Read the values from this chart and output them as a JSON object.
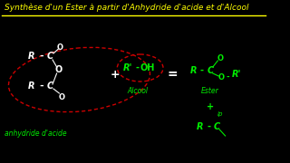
{
  "bg_color": "#000000",
  "title": "Synthèse d'un Ester à partir d'Anhydride d'acide et d'Alcool",
  "title_color": "#ffff00",
  "title_fontsize": 6.5,
  "line_color": "#ffff00",
  "wc": "#ffffff",
  "gc": "#00ee00",
  "rc": "#cc0000",
  "label_anhydride": "anhydride d'acide",
  "label_alcool": "Alcool",
  "label_ester": "Ester"
}
